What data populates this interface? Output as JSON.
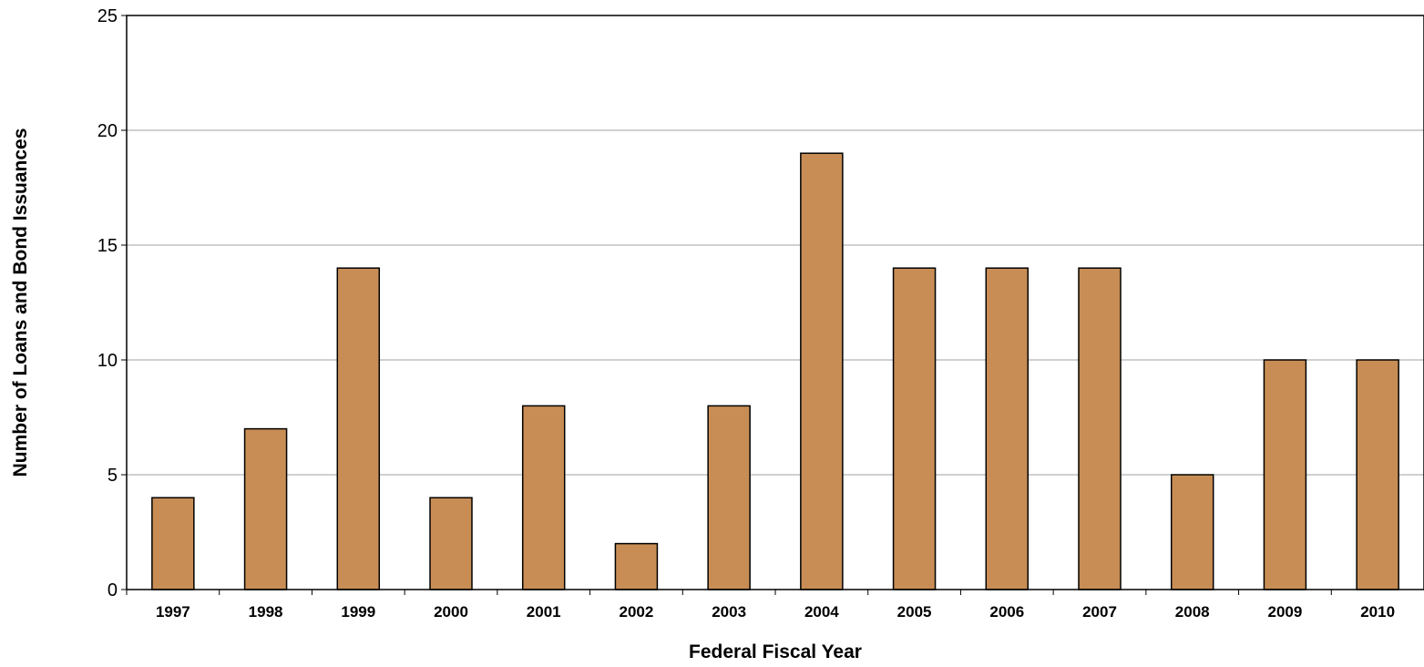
{
  "chart_data": {
    "type": "bar",
    "title": "",
    "xlabel": "Federal Fiscal Year",
    "ylabel": "Number of Loans and Bond Issuances",
    "categories": [
      "1997",
      "1998",
      "1999",
      "2000",
      "2001",
      "2002",
      "2003",
      "2004",
      "2005",
      "2006",
      "2007",
      "2008",
      "2009",
      "2010"
    ],
    "values": [
      4,
      7,
      14,
      4,
      8,
      2,
      8,
      19,
      14,
      14,
      14,
      5,
      10,
      10
    ],
    "ylim": [
      0,
      25
    ],
    "yticks": [
      "0",
      "5",
      "10",
      "15",
      "20",
      "25"
    ],
    "grid": true,
    "legend": "none",
    "bar_color": "#c88d55"
  }
}
